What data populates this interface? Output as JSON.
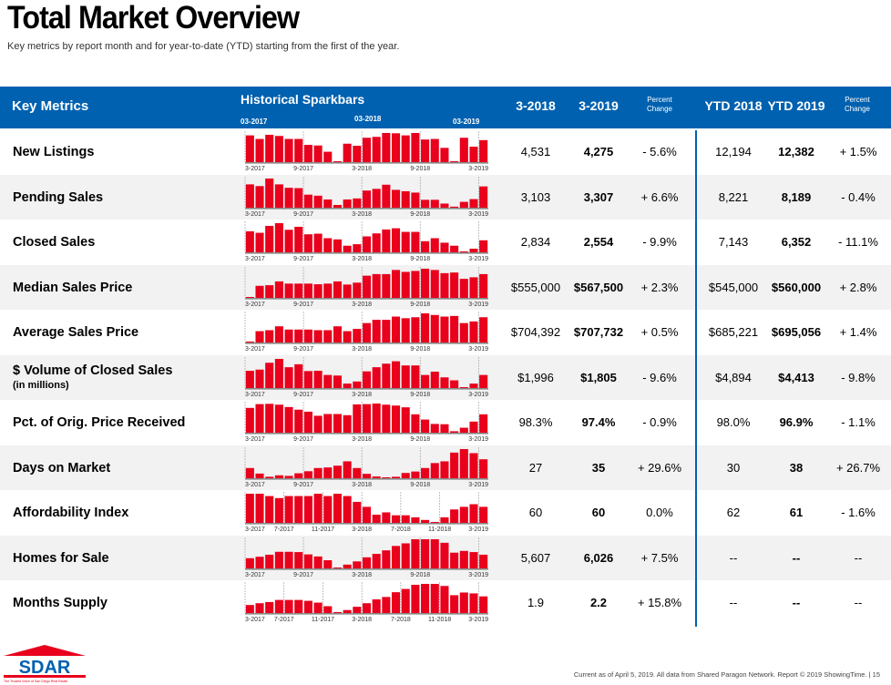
{
  "title": "Total Market Overview",
  "subtitle": "Key metrics by report month and for year-to-date (YTD) starting from the first of the year.",
  "header": {
    "key_metrics": "Key Metrics",
    "sparkbars": "Historical Sparkbars",
    "date_a": "03-2017",
    "date_b": "03-2018",
    "date_c": "03-2019",
    "col1": "3-2018",
    "col2": "3-2019",
    "pct": "Percent Change",
    "ytd1": "YTD 2018",
    "ytd2": "YTD 2019",
    "pct2": "Percent Change"
  },
  "bar_color": "#e8001c",
  "header_color": "#0061b0",
  "ticks_6": [
    "3-2017",
    "9-2017",
    "3-2018",
    "9-2018",
    "3-2019"
  ],
  "ticks_4": [
    "3-2017",
    "7-2017",
    "11-2017",
    "3-2018",
    "7-2018",
    "11-2018",
    "3-2019"
  ],
  "rows": [
    {
      "label": "New Listings",
      "v1": "4,531",
      "v2": "4,275",
      "pct": "- 5.6%",
      "y1": "12,194",
      "y2": "12,382",
      "ypct": "+ 1.5%",
      "ticks": "ticks_6",
      "bars": [
        90,
        78,
        92,
        88,
        78,
        78,
        58,
        56,
        35,
        2,
        62,
        55,
        82,
        85,
        98,
        97,
        90,
        98,
        76,
        78,
        48,
        3,
        82,
        52,
        74
      ]
    },
    {
      "label": "Pending Sales",
      "v1": "3,103",
      "v2": "3,307",
      "pct": "+ 6.6%",
      "y1": "8,221",
      "y2": "8,189",
      "ypct": "- 0.4%",
      "ticks": "ticks_6",
      "bars": [
        68,
        63,
        85,
        68,
        58,
        57,
        38,
        35,
        24,
        8,
        24,
        27,
        50,
        55,
        67,
        52,
        48,
        44,
        23,
        23,
        12,
        3,
        17,
        25,
        62
      ]
    },
    {
      "label": "Closed Sales",
      "v1": "2,834",
      "v2": "2,554",
      "pct": "- 9.9%",
      "y1": "7,143",
      "y2": "6,352",
      "ypct": "- 11.1%",
      "ticks": "ticks_6",
      "bars": [
        70,
        65,
        88,
        97,
        75,
        85,
        60,
        62,
        47,
        43,
        22,
        27,
        53,
        63,
        76,
        80,
        68,
        68,
        37,
        47,
        32,
        22,
        2,
        12,
        40
      ]
    },
    {
      "label": "Median Sales Price",
      "v1": "$555,000",
      "v2": "$567,500",
      "pct": "+ 2.3%",
      "y1": "$545,000",
      "y2": "$560,000",
      "ypct": "+ 2.8%",
      "ticks": "ticks_6",
      "bars": [
        2,
        38,
        40,
        52,
        45,
        45,
        45,
        43,
        45,
        52,
        42,
        48,
        70,
        75,
        75,
        88,
        82,
        85,
        92,
        88,
        78,
        80,
        60,
        65,
        75
      ]
    },
    {
      "label": "Average Sales Price",
      "v1": "$704,392",
      "v2": "$707,732",
      "pct": "+ 0.5%",
      "y1": "$685,221",
      "y2": "$695,056",
      "ypct": "+ 1.4%",
      "ticks": "ticks_6",
      "bars": [
        3,
        35,
        38,
        50,
        40,
        40,
        40,
        38,
        38,
        50,
        35,
        42,
        60,
        70,
        70,
        80,
        75,
        78,
        90,
        85,
        80,
        82,
        60,
        65,
        78
      ]
    },
    {
      "label": "$ Volume of Closed Sales",
      "sublabel": "(in millions)",
      "v1": "$1,996",
      "v2": "$1,805",
      "pct": "- 9.6%",
      "y1": "$4,894",
      "y2": "$4,413",
      "ypct": "- 9.8%",
      "ticks": "ticks_6",
      "bars": [
        58,
        62,
        85,
        98,
        70,
        80,
        57,
        58,
        44,
        42,
        15,
        22,
        56,
        70,
        82,
        90,
        76,
        76,
        44,
        55,
        36,
        26,
        2,
        15,
        44
      ]
    },
    {
      "label": "Pct. of Orig. Price Received",
      "v1": "98.3%",
      "v2": "97.4%",
      "pct": "- 0.9%",
      "y1": "98.0%",
      "y2": "96.9%",
      "ypct": "- 1.1%",
      "ticks": "ticks_6",
      "bars": [
        85,
        98,
        99,
        96,
        88,
        79,
        72,
        58,
        64,
        64,
        60,
        97,
        98,
        100,
        96,
        93,
        87,
        63,
        45,
        30,
        29,
        5,
        17,
        38,
        63
      ]
    },
    {
      "label": "Days on Market",
      "v1": "27",
      "v2": "35",
      "pct": "+ 29.6%",
      "y1": "30",
      "y2": "38",
      "ypct": "+ 26.7%",
      "ticks": "ticks_6",
      "bars": [
        35,
        16,
        5,
        10,
        8,
        17,
        24,
        35,
        37,
        43,
        58,
        35,
        15,
        6,
        2,
        5,
        18,
        23,
        35,
        52,
        58,
        88,
        100,
        86,
        65
      ]
    },
    {
      "label": "Affordability Index",
      "v1": "60",
      "v2": "60",
      "pct": "0.0%",
      "y1": "62",
      "y2": "61",
      "ypct": "- 1.6%",
      "ticks": "ticks_4",
      "bars": [
        100,
        100,
        92,
        85,
        92,
        92,
        92,
        100,
        92,
        100,
        92,
        72,
        55,
        28,
        36,
        26,
        26,
        19,
        10,
        3,
        19,
        46,
        55,
        64,
        55
      ]
    },
    {
      "label": "Homes for Sale",
      "v1": "5,607",
      "v2": "6,026",
      "pct": "+ 7.5%",
      "y1": "--",
      "y2": "--",
      "ypct": "--",
      "ticks": "ticks_6",
      "bars": [
        35,
        40,
        47,
        57,
        57,
        56,
        48,
        41,
        28,
        3,
        13,
        24,
        38,
        50,
        62,
        77,
        86,
        100,
        100,
        100,
        88,
        54,
        60,
        56,
        47
      ]
    },
    {
      "label": "Months Supply",
      "v1": "1.9",
      "v2": "2.2",
      "pct": "+ 15.8%",
      "y1": "--",
      "y2": "--",
      "ypct": "--",
      "ticks": "ticks_4",
      "bars": [
        27,
        33,
        37,
        44,
        44,
        44,
        41,
        35,
        23,
        3,
        10,
        21,
        33,
        46,
        54,
        70,
        81,
        95,
        98,
        98,
        91,
        60,
        69,
        66,
        56
      ]
    }
  ],
  "logo": {
    "text": "SDAR",
    "org": "GREATER SAN DIEGO ASSOCIATION OF REALTORS",
    "tagline": "The Trusted Voice of San Diego Real Estate"
  },
  "footer": "Current as of April 5, 2019. All data from Shared Paragon Network. Report © 2019 ShowingTime.  |  15"
}
